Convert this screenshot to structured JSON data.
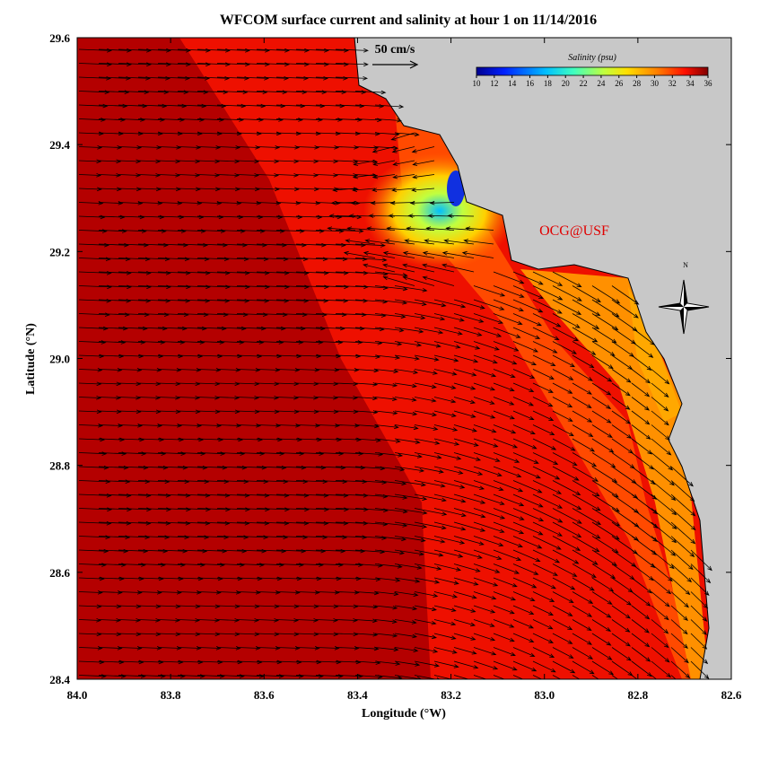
{
  "title": "WFCOM surface current and salinity at hour 1 on 11/14/2016",
  "x_axis": {
    "label": "Longitude (°W)",
    "lim": [
      84.0,
      82.6
    ],
    "ticks": [
      {
        "value": 84.0,
        "label": "84.0"
      },
      83.8,
      83.6,
      83.4,
      83.2,
      {
        "value": 83.0,
        "label": "83.0"
      },
      82.8,
      82.6
    ]
  },
  "y_axis": {
    "label": "Latitude (°N)",
    "lim": [
      28.4,
      29.6
    ],
    "ticks": [
      28.4,
      28.6,
      28.8,
      {
        "value": 29.0,
        "label": "29.0"
      },
      29.2,
      29.4,
      29.6
    ]
  },
  "colorbar": {
    "title": "Salinity (psu)",
    "lim": [
      10,
      36
    ],
    "ticks": [
      10,
      12,
      14,
      16,
      18,
      20,
      22,
      24,
      26,
      28,
      30,
      32,
      34,
      36
    ]
  },
  "scale_label": "50 cm/s",
  "credit": "OCG@USF",
  "north_label": "N"
}
